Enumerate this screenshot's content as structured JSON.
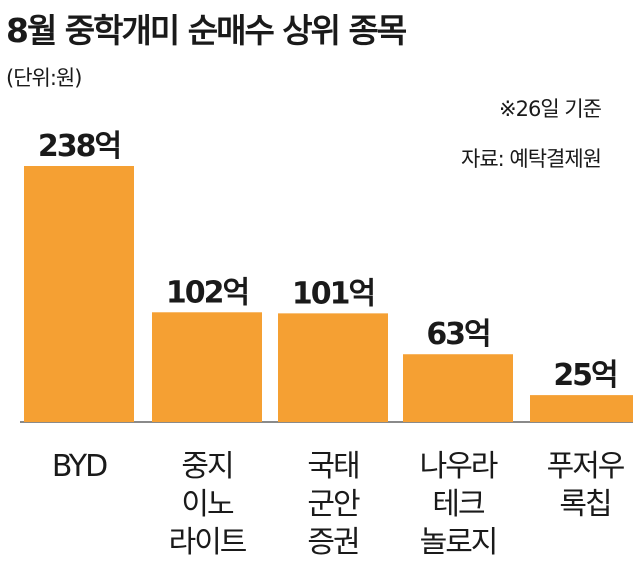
{
  "header": {
    "title": "8월 중학개미 순매수 상위 종목",
    "unit": "(단위:원)",
    "date_note": "※26일 기준",
    "source": "자료: 예탁결제원"
  },
  "colors": {
    "bar": "#f5a033",
    "axis": "#8a8a8a",
    "text": "#1a1a1a"
  },
  "chart_data": {
    "type": "bar",
    "title": "8월 중학개미 순매수 상위 종목",
    "unit": "(단위:원)",
    "categories": [
      [
        "BYD"
      ],
      [
        "중지",
        "이노",
        "라이트"
      ],
      [
        "국태",
        "군안",
        "증권"
      ],
      [
        "나우라",
        "테크",
        "놀로지"
      ],
      [
        "푸저우",
        "록칩"
      ]
    ],
    "values": [
      238,
      102,
      101,
      63,
      25
    ],
    "value_labels": [
      "238억",
      "102억",
      "101억",
      "63억",
      "25억"
    ],
    "value_unit": "억",
    "ylim": [
      0,
      238
    ],
    "grid": false,
    "legend": "none"
  }
}
